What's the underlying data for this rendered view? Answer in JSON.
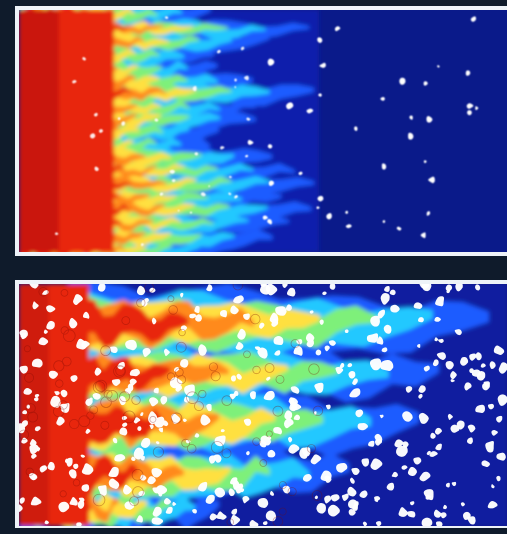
{
  "panels": [
    {
      "id": "top",
      "palette": {
        "background": "#0a1a8a",
        "deep_blue": "#101fb0",
        "blue": "#1e5cff",
        "cyan": "#20c8ff",
        "green": "#7ef07a",
        "yellow": "#ffe040",
        "orange": "#ff8a1a",
        "red": "#e8250e",
        "dark_red": "#b51208"
      }
    },
    {
      "id": "bottom",
      "palette": {
        "background": "#0a1a8a",
        "deep_blue": "#101fb0",
        "blue": "#1e5cff",
        "cyan": "#20c8ff",
        "green": "#7ef07a",
        "yellow": "#ffe040",
        "orange": "#ff8a1a",
        "red": "#e8250e",
        "dark_red": "#b51208",
        "grain": "#ffffff"
      }
    }
  ],
  "page_background": "#0f1b2b"
}
